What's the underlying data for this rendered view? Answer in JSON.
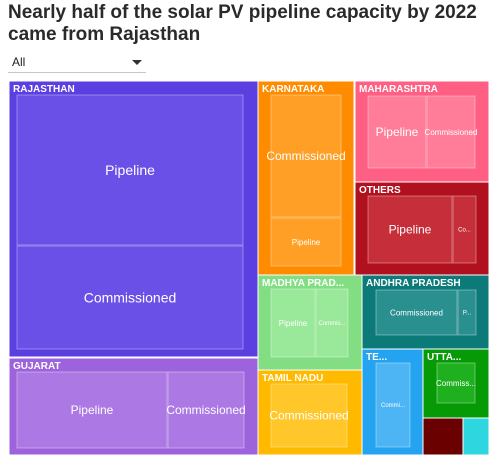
{
  "title": "Nearly half of the solar PV pipeline capacity by 2022 came from Rajasthan",
  "filter": {
    "selected": "All"
  },
  "chart_data": {
    "type": "treemap",
    "tiles": [
      {
        "label": "RAJASTHAN",
        "color": "#5b3fe0",
        "inner": "#6b50e8",
        "sub": [
          {
            "label": "Pipeline"
          },
          {
            "label": "Commissioned"
          }
        ]
      },
      {
        "label": "GUJARAT",
        "color": "#9d63dc",
        "inner": "#ac78e4",
        "sub": [
          {
            "label": "Pipeline"
          },
          {
            "label": "Commissioned"
          }
        ]
      },
      {
        "label": "KARNATAKA",
        "color": "#ff8c00",
        "inner": "#ff9f26",
        "sub": [
          {
            "label": "Commissioned"
          },
          {
            "label": "Pipeline"
          }
        ]
      },
      {
        "label": "MAHARASHTRA",
        "color": "#ff5f82",
        "inner": "#ff7d98",
        "sub": [
          {
            "label": "Pipeline"
          },
          {
            "label": "Commissioned"
          }
        ]
      },
      {
        "label": "OTHERS",
        "color": "#b1101e",
        "inner": "#c62e3a",
        "sub": [
          {
            "label": "Pipeline"
          },
          {
            "label": "Co..."
          }
        ]
      },
      {
        "label": "MADHYA PRAD...",
        "color": "#83de83",
        "inner": "#9ae89a",
        "sub": [
          {
            "label": "Pipeline"
          },
          {
            "label": "Commis..."
          }
        ]
      },
      {
        "label": "ANDHRA PRADESH",
        "color": "#0d7a7a",
        "inner": "#2a8f8f",
        "sub": [
          {
            "label": "Commissioned"
          },
          {
            "label": "P..."
          }
        ]
      },
      {
        "label": "TAMIL NADU",
        "color": "#ffba00",
        "inner": "#ffc729",
        "sub": [
          {
            "label": "Commissioned"
          }
        ]
      },
      {
        "label": "TE...",
        "color": "#24a3f0",
        "inner": "#4db5f3",
        "sub": [
          {
            "label": "Commi..."
          }
        ]
      },
      {
        "label": "UTTA...",
        "color": "#079a07",
        "inner": "#1fb01f",
        "sub": [
          {
            "label": "Commiss..."
          }
        ]
      },
      {
        "label": "",
        "color": "#6b0000",
        "inner": "#8a0f0f",
        "sub": []
      },
      {
        "label": "",
        "color": "#2ed6e0",
        "inner": "#2ed6e0",
        "sub": []
      }
    ]
  }
}
